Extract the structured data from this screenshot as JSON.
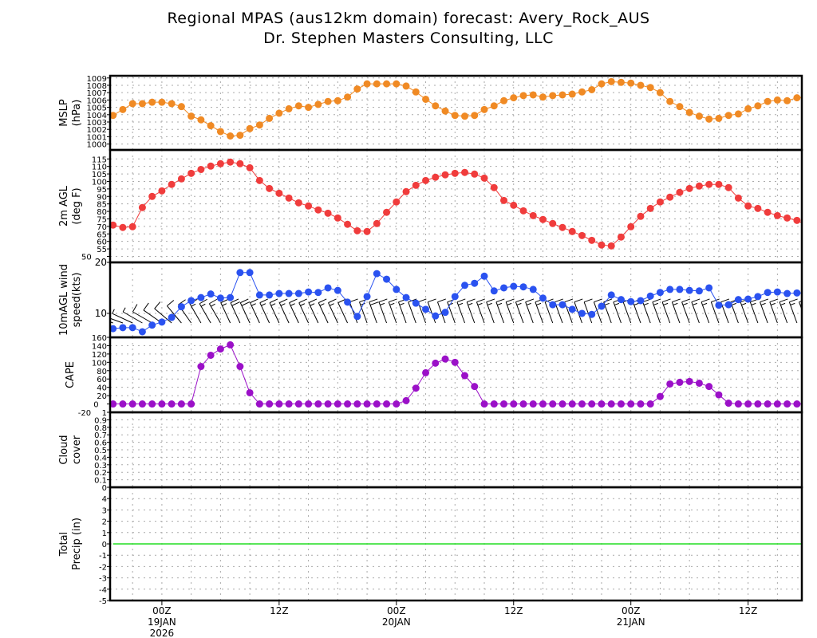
{
  "title_line1": "Regional MPAS (aus12km domain) forecast: Avery_Rock_AUS",
  "title_line2": "Dr. Stephen Masters Consulting, LLC",
  "chart_data": {
    "type": "line",
    "x_unit": "forecast hour relative to 00Z 19JAN 2026",
    "x_start_hour": -5,
    "x_step_hours": 1,
    "xlim": [
      -5.3,
      65.5
    ],
    "x_ticks": [
      {
        "hour": 0,
        "lines": [
          "00Z",
          "19JAN",
          "2026"
        ]
      },
      {
        "hour": 12,
        "lines": [
          "12Z"
        ]
      },
      {
        "hour": 24,
        "lines": [
          "00Z",
          "20JAN"
        ]
      },
      {
        "hour": 36,
        "lines": [
          "12Z"
        ]
      },
      {
        "hour": 48,
        "lines": [
          "00Z",
          "21JAN"
        ]
      },
      {
        "hour": 60,
        "lines": [
          "12Z"
        ]
      }
    ],
    "panels": [
      {
        "name": "mslp",
        "ylabel": [
          "MSLP",
          "(hPa)"
        ],
        "ylim": [
          999.2,
          1009.3
        ],
        "ticks": [
          1000,
          1001,
          1002,
          1003,
          1004,
          1005,
          1006,
          1007,
          1008,
          1009
        ],
        "color": "#f08a24",
        "values": [
          1003.9,
          1004.7,
          1005.5,
          1005.5,
          1005.7,
          1005.7,
          1005.5,
          1005.1,
          1003.8,
          1003.3,
          1002.5,
          1001.7,
          1001.1,
          1001.2,
          1002.1,
          1002.6,
          1003.5,
          1004.2,
          1004.8,
          1005.2,
          1005.0,
          1005.4,
          1005.8,
          1005.9,
          1006.4,
          1007.5,
          1008.2,
          1008.2,
          1008.2,
          1008.2,
          1007.9,
          1007.1,
          1006.1,
          1005.2,
          1004.5,
          1003.9,
          1003.8,
          1003.9,
          1004.7,
          1005.2,
          1005.9,
          1006.3,
          1006.6,
          1006.7,
          1006.4,
          1006.6,
          1006.7,
          1006.8,
          1007.1,
          1007.4,
          1008.2,
          1008.5,
          1008.4,
          1008.3,
          1008.0,
          1007.7,
          1007.0,
          1005.8,
          1005.1,
          1004.3,
          1003.8,
          1003.4,
          1003.5,
          1003.9,
          1004.1,
          1004.8,
          1005.2,
          1005.8,
          1006.0,
          1005.9,
          1006.3,
          1006.4
        ]
      },
      {
        "name": "temperature",
        "ylabel": [
          "2m AGL",
          "(deg F)"
        ],
        "ylim": [
          46,
          121
        ],
        "ticks": [
          50,
          55,
          60,
          65,
          70,
          75,
          80,
          85,
          90,
          95,
          100,
          105,
          110,
          115
        ],
        "color": "#f03c3c",
        "values": [
          70.9,
          69.3,
          69.8,
          82.6,
          90.0,
          93.7,
          98.0,
          101.7,
          105.4,
          108.0,
          110.2,
          111.8,
          112.9,
          111.8,
          109.1,
          100.6,
          95.3,
          92.1,
          88.9,
          85.7,
          83.6,
          81.0,
          78.8,
          75.6,
          71.4,
          67.1,
          66.6,
          71.9,
          79.4,
          86.3,
          93.2,
          97.4,
          100.6,
          102.8,
          104.4,
          105.4,
          106.0,
          104.9,
          102.2,
          95.9,
          87.3,
          84.1,
          80.4,
          77.2,
          74.6,
          71.9,
          69.3,
          66.6,
          63.9,
          60.7,
          57.6,
          57.0,
          62.9,
          69.8,
          76.7,
          82.0,
          86.3,
          89.5,
          92.7,
          95.3,
          96.9,
          98.0,
          98.0,
          95.9,
          88.9,
          83.6,
          82.0,
          79.4,
          77.2,
          75.6,
          74.0,
          70.9
        ]
      },
      {
        "name": "wind-speed",
        "ylabel": [
          "10mAGL wind",
          "speed(kts)"
        ],
        "ylim": [
          5.3,
          20
        ],
        "ticks": [
          10,
          20
        ],
        "color": "#2a52f0",
        "barbs": true,
        "values": [
          7.0,
          7.2,
          7.2,
          6.4,
          7.7,
          8.3,
          9.2,
          11.3,
          12.5,
          13.1,
          13.8,
          13.0,
          13.1,
          18.0,
          18.0,
          13.6,
          13.6,
          13.9,
          13.9,
          13.9,
          14.2,
          14.1,
          15.0,
          14.5,
          12.2,
          9.4,
          13.3,
          17.8,
          16.7,
          14.7,
          13.1,
          12.0,
          10.8,
          9.5,
          10.2,
          13.3,
          15.5,
          15.9,
          17.3,
          14.4,
          15.0,
          15.3,
          15.2,
          14.7,
          13.0,
          11.7,
          11.7,
          10.8,
          10.0,
          9.8,
          11.4,
          13.6,
          12.7,
          12.3,
          12.5,
          13.4,
          14.1,
          14.7,
          14.7,
          14.5,
          14.4,
          15.0,
          11.6,
          11.7,
          12.7,
          12.8,
          13.3,
          14.1,
          14.2,
          13.9,
          14.0,
          14.0
        ],
        "directions_deg": [
          290,
          290,
          295,
          300,
          300,
          305,
          310,
          320,
          325,
          330,
          330,
          330,
          335,
          335,
          335,
          335,
          335,
          335,
          335,
          335,
          335,
          335,
          335,
          335,
          335,
          340,
          340,
          340,
          340,
          340,
          340,
          340,
          340,
          340,
          340,
          340,
          340,
          340,
          340,
          340,
          340,
          340,
          340,
          340,
          340,
          340,
          340,
          340,
          340,
          340,
          340,
          340,
          340,
          340,
          340,
          340,
          340,
          340,
          340,
          340,
          340,
          340,
          340,
          340,
          340,
          340,
          340,
          340,
          340,
          340,
          340,
          340
        ]
      },
      {
        "name": "cape",
        "ylabel": [
          "CAPE"
        ],
        "ylim": [
          -20,
          160
        ],
        "ticks": [
          -20,
          0,
          20,
          40,
          60,
          80,
          100,
          120,
          140,
          160
        ],
        "color": "#9b10c8",
        "values": [
          0,
          0,
          0,
          0,
          0,
          0,
          0,
          0,
          0,
          90,
          117,
          132,
          142,
          90,
          27,
          0,
          0,
          0,
          0,
          0,
          0,
          0,
          0,
          0,
          0,
          0,
          0,
          0,
          0,
          0,
          8,
          38,
          75,
          98,
          108,
          100,
          68,
          42,
          0,
          0,
          0,
          0,
          0,
          0,
          0,
          0,
          0,
          0,
          0,
          0,
          0,
          0,
          0,
          0,
          0,
          0,
          18,
          48,
          52,
          54,
          50,
          42,
          22,
          2,
          0,
          0,
          0,
          0,
          0,
          0,
          0,
          0
        ]
      },
      {
        "name": "cloud-cover",
        "ylabel": [
          "Cloud",
          "cover"
        ],
        "ylim": [
          0,
          1
        ],
        "ticks": [
          0,
          0.1,
          0.2,
          0.3,
          0.4,
          0.5,
          0.6,
          0.7,
          0.8,
          0.9,
          1
        ],
        "color": "#888888",
        "values": []
      },
      {
        "name": "total-precip",
        "ylabel": [
          "Total",
          "Precip (in)"
        ],
        "ylim": [
          -5,
          5
        ],
        "ticks": [
          -5,
          -4,
          -3,
          -2,
          -1,
          0,
          1,
          2,
          3,
          4
        ],
        "color": "#22dd22",
        "line_only": true,
        "values": [
          0,
          0,
          0,
          0,
          0,
          0,
          0,
          0,
          0,
          0,
          0,
          0,
          0,
          0,
          0,
          0,
          0,
          0,
          0,
          0,
          0,
          0,
          0,
          0,
          0,
          0,
          0,
          0,
          0,
          0,
          0,
          0,
          0,
          0,
          0,
          0,
          0,
          0,
          0,
          0,
          0,
          0,
          0,
          0,
          0,
          0,
          0,
          0,
          0,
          0,
          0,
          0,
          0,
          0,
          0,
          0,
          0,
          0,
          0,
          0,
          0,
          0,
          0,
          0,
          0,
          0,
          0,
          0,
          0,
          0,
          0,
          0
        ]
      }
    ]
  }
}
